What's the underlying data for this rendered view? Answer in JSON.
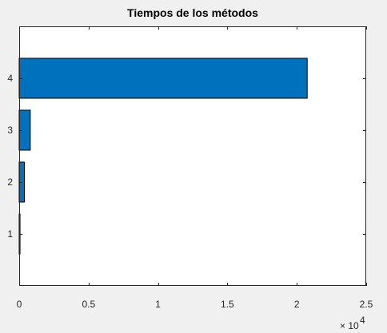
{
  "window": {
    "background": "#f0f0f0"
  },
  "chart_data": {
    "type": "bar",
    "orientation": "horizontal",
    "title": "Tiempos de los métodos",
    "categories": [
      "1",
      "2",
      "3",
      "4"
    ],
    "values": [
      60,
      380,
      800,
      20750
    ],
    "xlim": [
      0,
      25000
    ],
    "ylim": [
      0,
      5
    ],
    "xticks": [
      0,
      5000,
      10000,
      15000,
      20000,
      25000
    ],
    "xtick_labels": [
      "0",
      "0.5",
      "1",
      "1.5",
      "2",
      "2.5"
    ],
    "x_exponent": {
      "base": "× 10",
      "power": "4"
    },
    "xlabel": "",
    "ylabel": "",
    "grid": false,
    "bar_color": "#0072bd",
    "bar_edge_color": "#000000",
    "axes_background": "#ffffff",
    "axes_color": "#262626"
  }
}
